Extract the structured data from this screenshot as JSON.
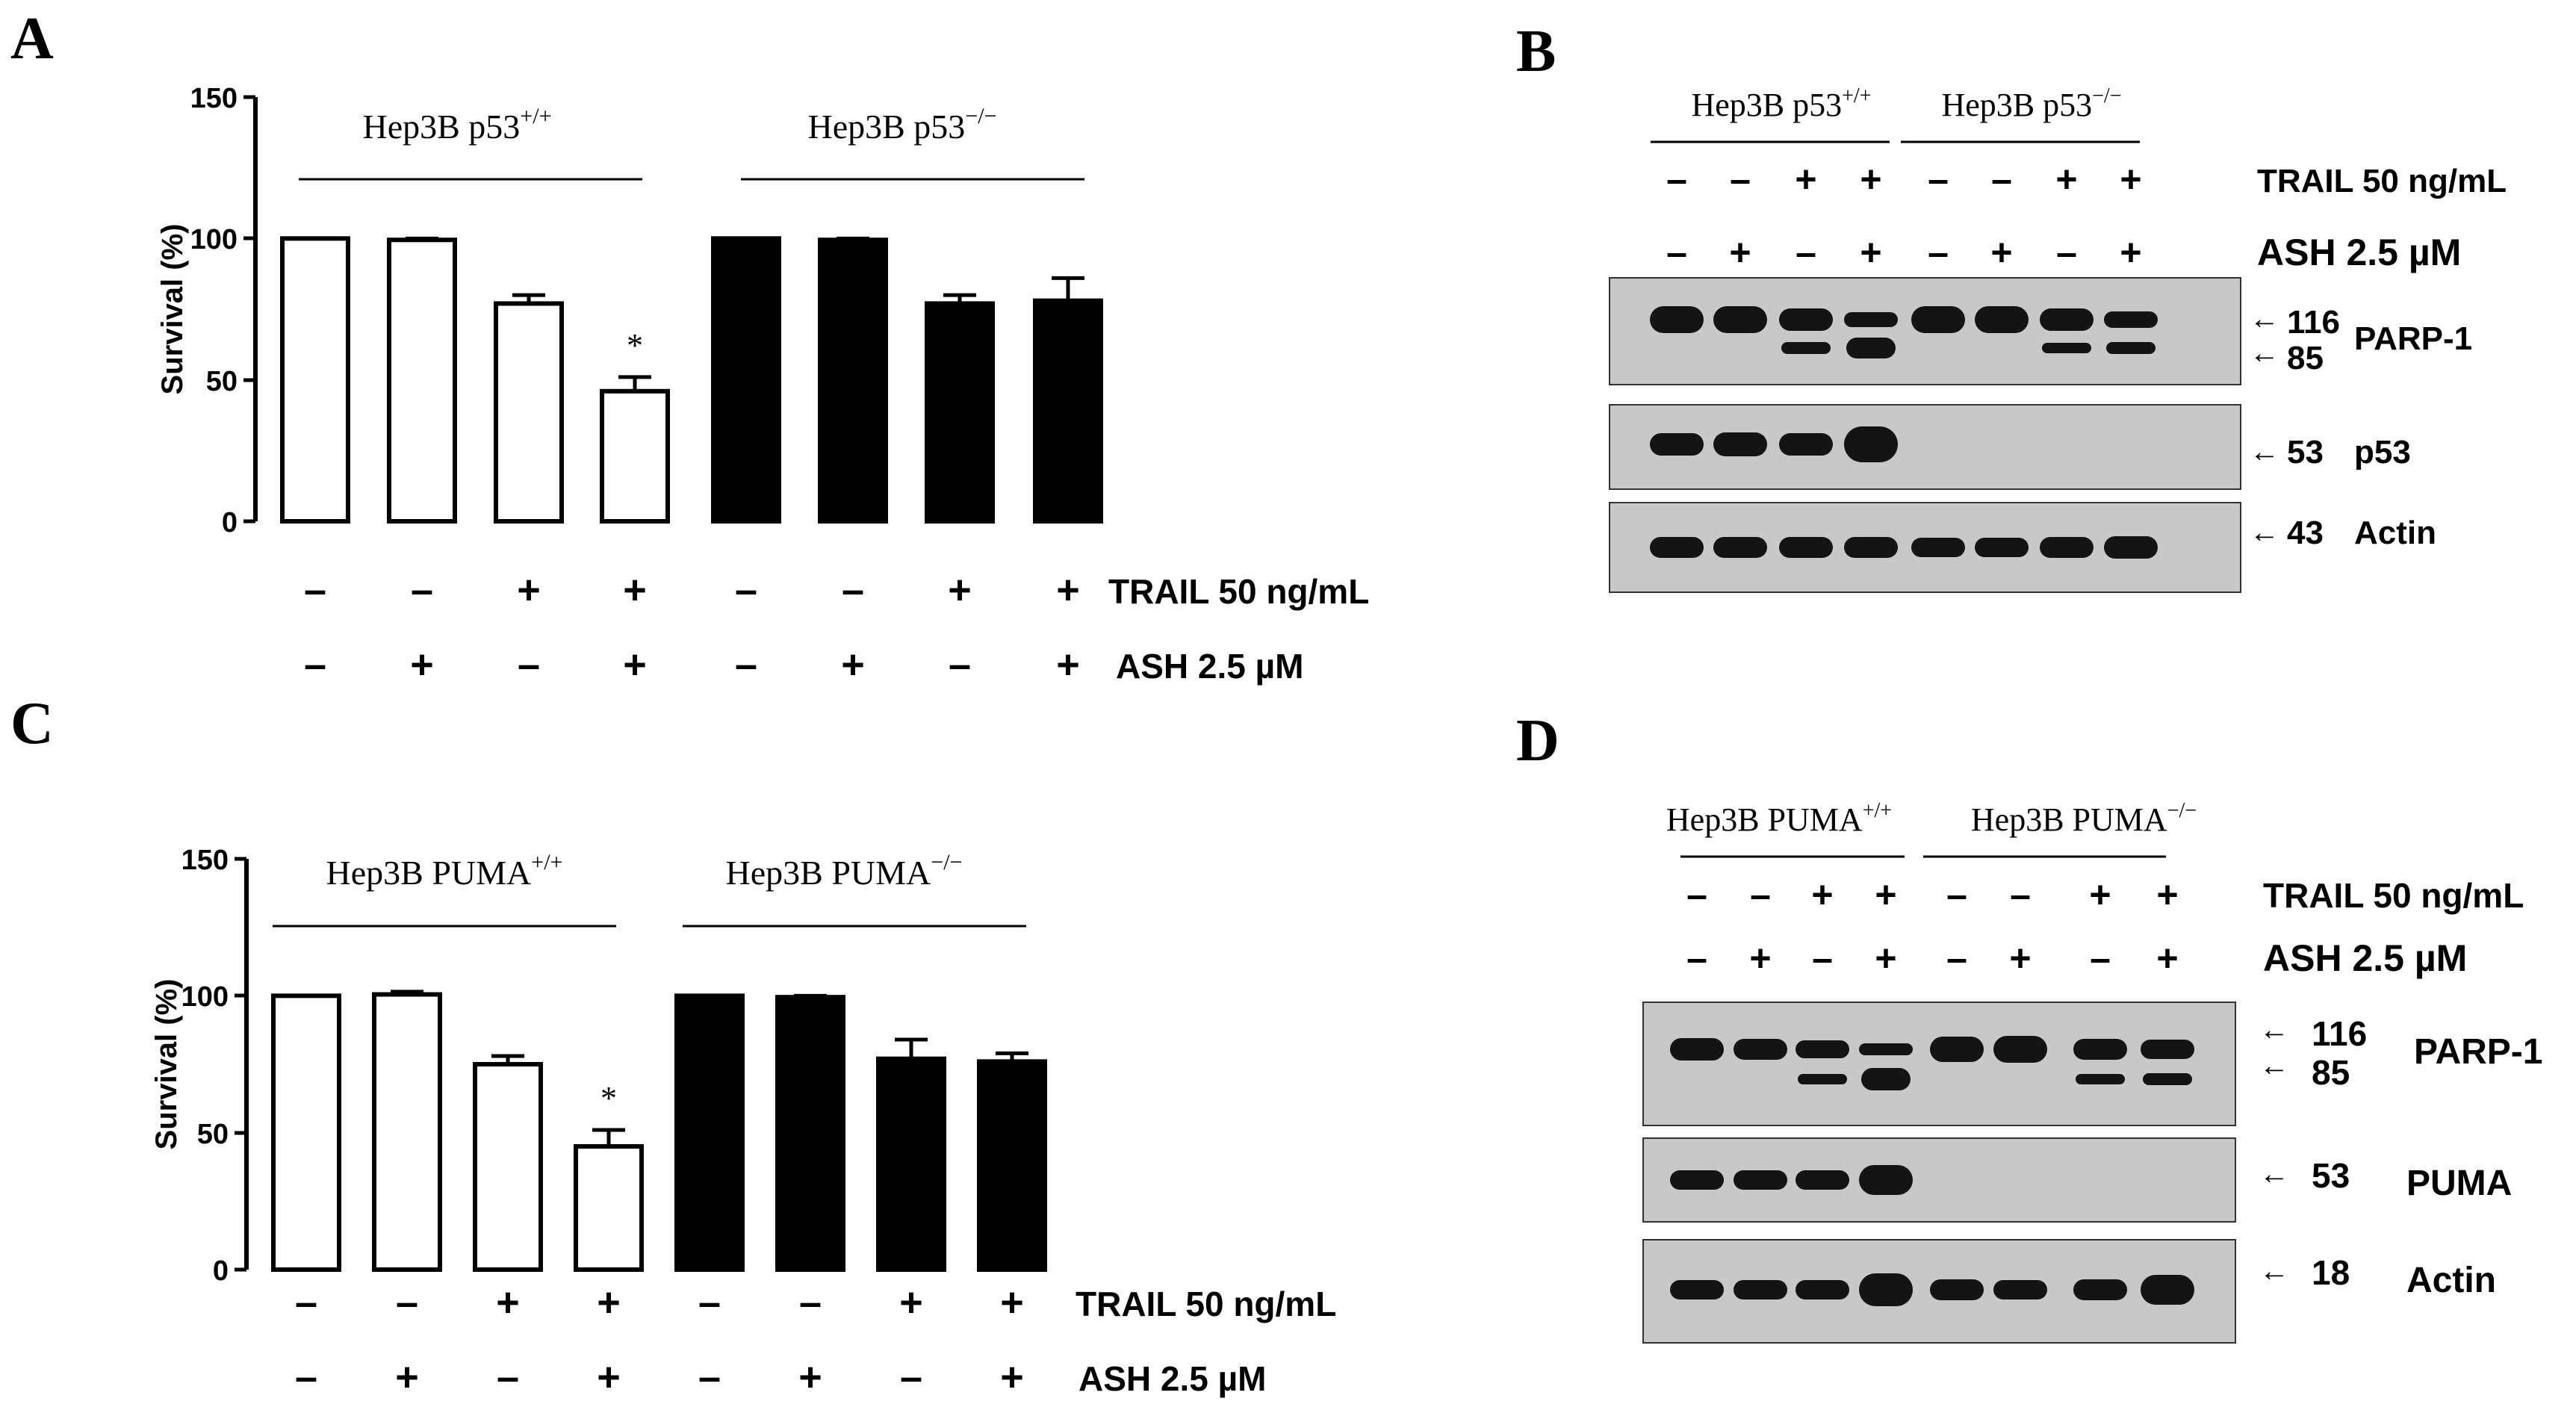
{
  "chart_data": [
    {
      "panel": "A",
      "type": "bar",
      "ylabel": "Survival (%)",
      "ylim": [
        0,
        150
      ],
      "yticks": [
        "0",
        "50",
        "100",
        "150"
      ],
      "groups": [
        "Hep3B p53",
        "Hep3B p53"
      ],
      "group_superscripts": [
        "+/+",
        "−/−"
      ],
      "trail_row": [
        "-",
        "-",
        "+",
        "+",
        "-",
        "-",
        "+",
        "+"
      ],
      "ash_row": [
        "-",
        "+",
        "-",
        "+",
        "-",
        "+",
        "-",
        "+"
      ],
      "trail_label": "TRAIL 50 ng/mL",
      "ash_label": "ASH 2.5 µM",
      "values": [
        100,
        99.5,
        77,
        46,
        100,
        99.5,
        77,
        78
      ],
      "errors": [
        0,
        0.5,
        3,
        5,
        0,
        0.5,
        3,
        8
      ],
      "fills": [
        "white",
        "white",
        "white",
        "white",
        "black",
        "black",
        "black",
        "black"
      ],
      "significance": [
        {
          "bar": 3,
          "text": "*"
        }
      ]
    },
    {
      "panel": "C",
      "type": "bar",
      "ylabel": "Survival (%)",
      "ylim": [
        0,
        150
      ],
      "yticks": [
        "0",
        "50",
        "100",
        "150"
      ],
      "groups": [
        "Hep3B PUMA",
        "Hep3B PUMA"
      ],
      "group_superscripts": [
        "+/+",
        "−/−"
      ],
      "trail_row": [
        "-",
        "-",
        "+",
        "+",
        "-",
        "-",
        "+",
        "+"
      ],
      "ash_row": [
        "-",
        "+",
        "-",
        "+",
        "-",
        "+",
        "-",
        "+"
      ],
      "trail_label": "TRAIL 50 ng/mL",
      "ash_label": "ASH 2.5 µM",
      "values": [
        100,
        100.5,
        75,
        45,
        100,
        99.5,
        77,
        76
      ],
      "errors": [
        0,
        1,
        3,
        6,
        0,
        0.5,
        7,
        3
      ],
      "fills": [
        "white",
        "white",
        "white",
        "white",
        "black",
        "black",
        "black",
        "black"
      ],
      "significance": [
        {
          "bar": 3,
          "text": "*"
        }
      ]
    }
  ],
  "panel_labels": {
    "A": "A",
    "B": "B",
    "C": "C",
    "D": "D"
  },
  "blot_B": {
    "groups": [
      "Hep3B p53",
      "Hep3B p53"
    ],
    "group_superscripts": [
      "+/+",
      "−/−"
    ],
    "trail_row": [
      "-",
      "-",
      "+",
      "+",
      "-",
      "-",
      "+",
      "+"
    ],
    "ash_row": [
      "-",
      "+",
      "-",
      "+",
      "-",
      "+",
      "-",
      "+"
    ],
    "trail_label": "TRAIL 50 ng/mL",
    "ash_label": "ASH 2.5 µM",
    "markers": {
      "m116": "116",
      "m85": "85",
      "m53": "53",
      "m43": "43"
    },
    "proteins": {
      "parp": "PARP-1",
      "p53": "p53",
      "actin": "Actin"
    },
    "arrow": "←",
    "band_color": "#141414",
    "panel_bg": "#c8c8c8"
  },
  "blot_D": {
    "groups": [
      "Hep3B PUMA",
      "Hep3B PUMA"
    ],
    "group_superscripts": [
      "+/+",
      "−/−"
    ],
    "trail_row": [
      "-",
      "-",
      "+",
      "+",
      "-",
      "-",
      "+",
      "+"
    ],
    "ash_row": [
      "-",
      "+",
      "-",
      "+",
      "-",
      "+",
      "-",
      "+"
    ],
    "trail_label": "TRAIL 50 ng/mL",
    "ash_label": "ASH 2.5 µM",
    "markers": {
      "m116": "116",
      "m85": "85",
      "m53": "53",
      "m18": "18"
    },
    "proteins": {
      "parp": "PARP-1",
      "puma": "PUMA",
      "actin": "Actin"
    },
    "arrow": "←",
    "band_color": "#141414",
    "panel_bg": "#c8c8c8"
  }
}
